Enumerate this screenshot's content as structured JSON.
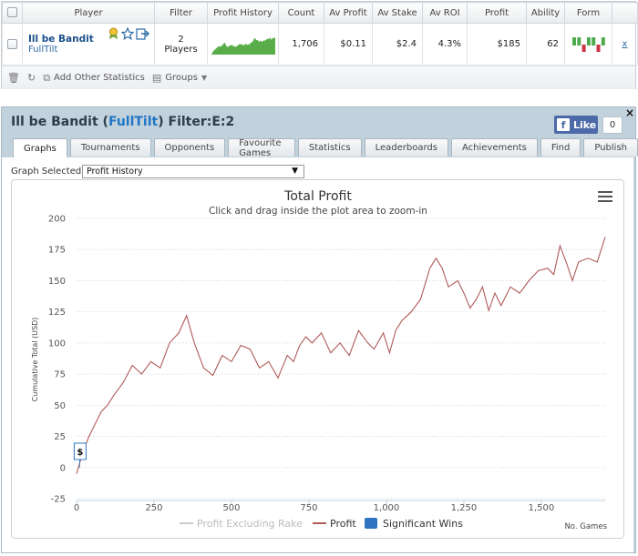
{
  "stats_table": {
    "headers": [
      "Player",
      "Filter",
      "Profit History",
      "Count",
      "Av Profit",
      "Av Stake",
      "Av ROI",
      "Profit",
      "Ability",
      "Form"
    ],
    "row": {
      "player_name": "Ill be Bandit",
      "site": "FullTilt",
      "filter_line1": "2",
      "filter_line2": "Players",
      "count": "1,706",
      "av_profit": "$0.11",
      "av_stake": "$2.4",
      "av_roi": "4.3%",
      "profit": "$185",
      "ability": "62",
      "remove": "x",
      "form": [
        1,
        1,
        -1,
        1,
        1,
        -1,
        1
      ],
      "form_colors": {
        "win": "#4daa4d",
        "loss": "#cc3344"
      }
    },
    "toolbar": {
      "add_stats": "Add Other Statistics",
      "groups": "Groups"
    }
  },
  "profile": {
    "title_prefix": "Ill be Bandit (",
    "title_site": "FullTilt",
    "title_suffix": ") Filter:E:2",
    "close": "×",
    "fb_like": "Like",
    "fb_count": "0",
    "tabs": [
      "Graphs",
      "Tournaments",
      "Opponents",
      "Favourite Games",
      "Statistics",
      "Leaderboards",
      "Achievements",
      "Find",
      "Publish"
    ],
    "active_tab": 0,
    "graph_selected_label": "Graph Selected:",
    "graph_selected_value": "Profit History"
  },
  "chart_data": {
    "type": "line",
    "title": "Total Profit",
    "subtitle": "Click and drag inside the plot area to zoom-in",
    "ylabel": "Cumulative Total (USD)",
    "xlabel": "No. Games",
    "ylim": [
      -25,
      200
    ],
    "xlim": [
      0,
      1706
    ],
    "y_ticks": [
      -25,
      0,
      25,
      50,
      75,
      100,
      125,
      150,
      175,
      200
    ],
    "x_ticks": [
      0,
      250,
      500,
      750,
      1000,
      1250,
      1500
    ],
    "x_tick_labels": [
      "0",
      "250",
      "500",
      "750",
      "1,000",
      "1,250",
      "1,500"
    ],
    "grid": true,
    "legend_position": "bottom-center",
    "legend": [
      "Profit Excluding Rake",
      "Profit",
      "Significant Wins"
    ],
    "flag_label": "$",
    "series": [
      {
        "name": "Profit",
        "color": "#b05a5a",
        "x": [
          0,
          20,
          40,
          60,
          80,
          100,
          120,
          150,
          180,
          210,
          240,
          270,
          300,
          330,
          355,
          380,
          410,
          440,
          470,
          500,
          530,
          560,
          590,
          620,
          650,
          680,
          700,
          720,
          740,
          760,
          790,
          820,
          850,
          880,
          910,
          940,
          960,
          990,
          1010,
          1030,
          1050,
          1080,
          1110,
          1140,
          1160,
          1180,
          1200,
          1230,
          1250,
          1270,
          1290,
          1310,
          1330,
          1350,
          1370,
          1400,
          1430,
          1460,
          1490,
          1520,
          1540,
          1560,
          1580,
          1600,
          1620,
          1650,
          1680,
          1706
        ],
        "values": [
          -5,
          12,
          25,
          35,
          45,
          50,
          58,
          68,
          82,
          75,
          85,
          80,
          100,
          108,
          122,
          100,
          80,
          74,
          90,
          85,
          98,
          95,
          80,
          85,
          72,
          90,
          85,
          98,
          105,
          100,
          108,
          92,
          100,
          90,
          110,
          100,
          95,
          108,
          92,
          110,
          118,
          125,
          135,
          160,
          168,
          160,
          145,
          150,
          140,
          128,
          135,
          145,
          126,
          140,
          130,
          145,
          140,
          150,
          158,
          160,
          155,
          178,
          165,
          150,
          165,
          168,
          165,
          185
        ]
      }
    ],
    "significant_wins": [
      10
    ],
    "colors": {
      "significant_wins": "#2f74c0",
      "rake_series": "#cccccc"
    }
  }
}
